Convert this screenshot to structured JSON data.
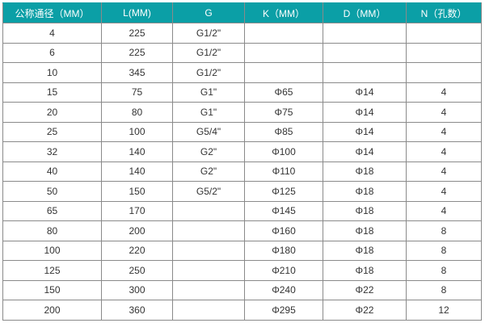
{
  "header_color": "#0b9fa6",
  "headers": [
    "公称通径（MM）",
    "L(MM)",
    "G",
    "K（MM）",
    "D（MM）",
    "N（孔数）"
  ],
  "rows": [
    [
      "4",
      "225",
      "G1/2\"",
      "",
      "",
      ""
    ],
    [
      "6",
      "225",
      "G1/2\"",
      "",
      "",
      ""
    ],
    [
      "10",
      "345",
      "G1/2\"",
      "",
      "",
      ""
    ],
    [
      "15",
      "75",
      "G1\"",
      "Φ65",
      "Φ14",
      "4"
    ],
    [
      "20",
      "80",
      "G1\"",
      "Φ75",
      "Φ14",
      "4"
    ],
    [
      "25",
      "100",
      "G5/4\"",
      "Φ85",
      "Φ14",
      "4"
    ],
    [
      "32",
      "140",
      "G2\"",
      "Φ100",
      "Φ14",
      "4"
    ],
    [
      "40",
      "140",
      "G2\"",
      "Φ110",
      "Φ18",
      "4"
    ],
    [
      "50",
      "150",
      "G5/2\"",
      "Φ125",
      "Φ18",
      "4"
    ],
    [
      "65",
      "170",
      "",
      "Φ145",
      "Φ18",
      "4"
    ],
    [
      "80",
      "200",
      "",
      "Φ160",
      "Φ18",
      "8"
    ],
    [
      "100",
      "220",
      "",
      "Φ180",
      "Φ18",
      "8"
    ],
    [
      "125",
      "250",
      "",
      "Φ210",
      "Φ18",
      "8"
    ],
    [
      "150",
      "300",
      "",
      "Φ240",
      "Φ22",
      "8"
    ],
    [
      "200",
      "360",
      "",
      "Φ295",
      "Φ22",
      "12"
    ]
  ]
}
